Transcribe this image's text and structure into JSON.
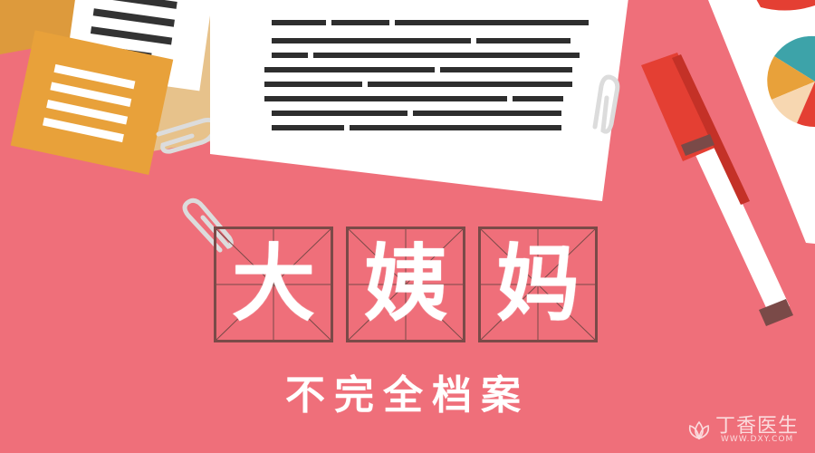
{
  "title": {
    "chars": [
      "大",
      "姨",
      "妈"
    ]
  },
  "subtitle": "不完全档案",
  "watermark": {
    "brand": "丁香医生",
    "url": "WWW.DXY.COM",
    "icon": "flower-logo-icon"
  },
  "colors": {
    "background": "#ef6f7a",
    "grid_border": "#7a4a48",
    "text": "#ffffff",
    "folder_orange": "#e8a13a",
    "marker_red": "#e43f33",
    "pie_teal": "#3da3a9"
  }
}
